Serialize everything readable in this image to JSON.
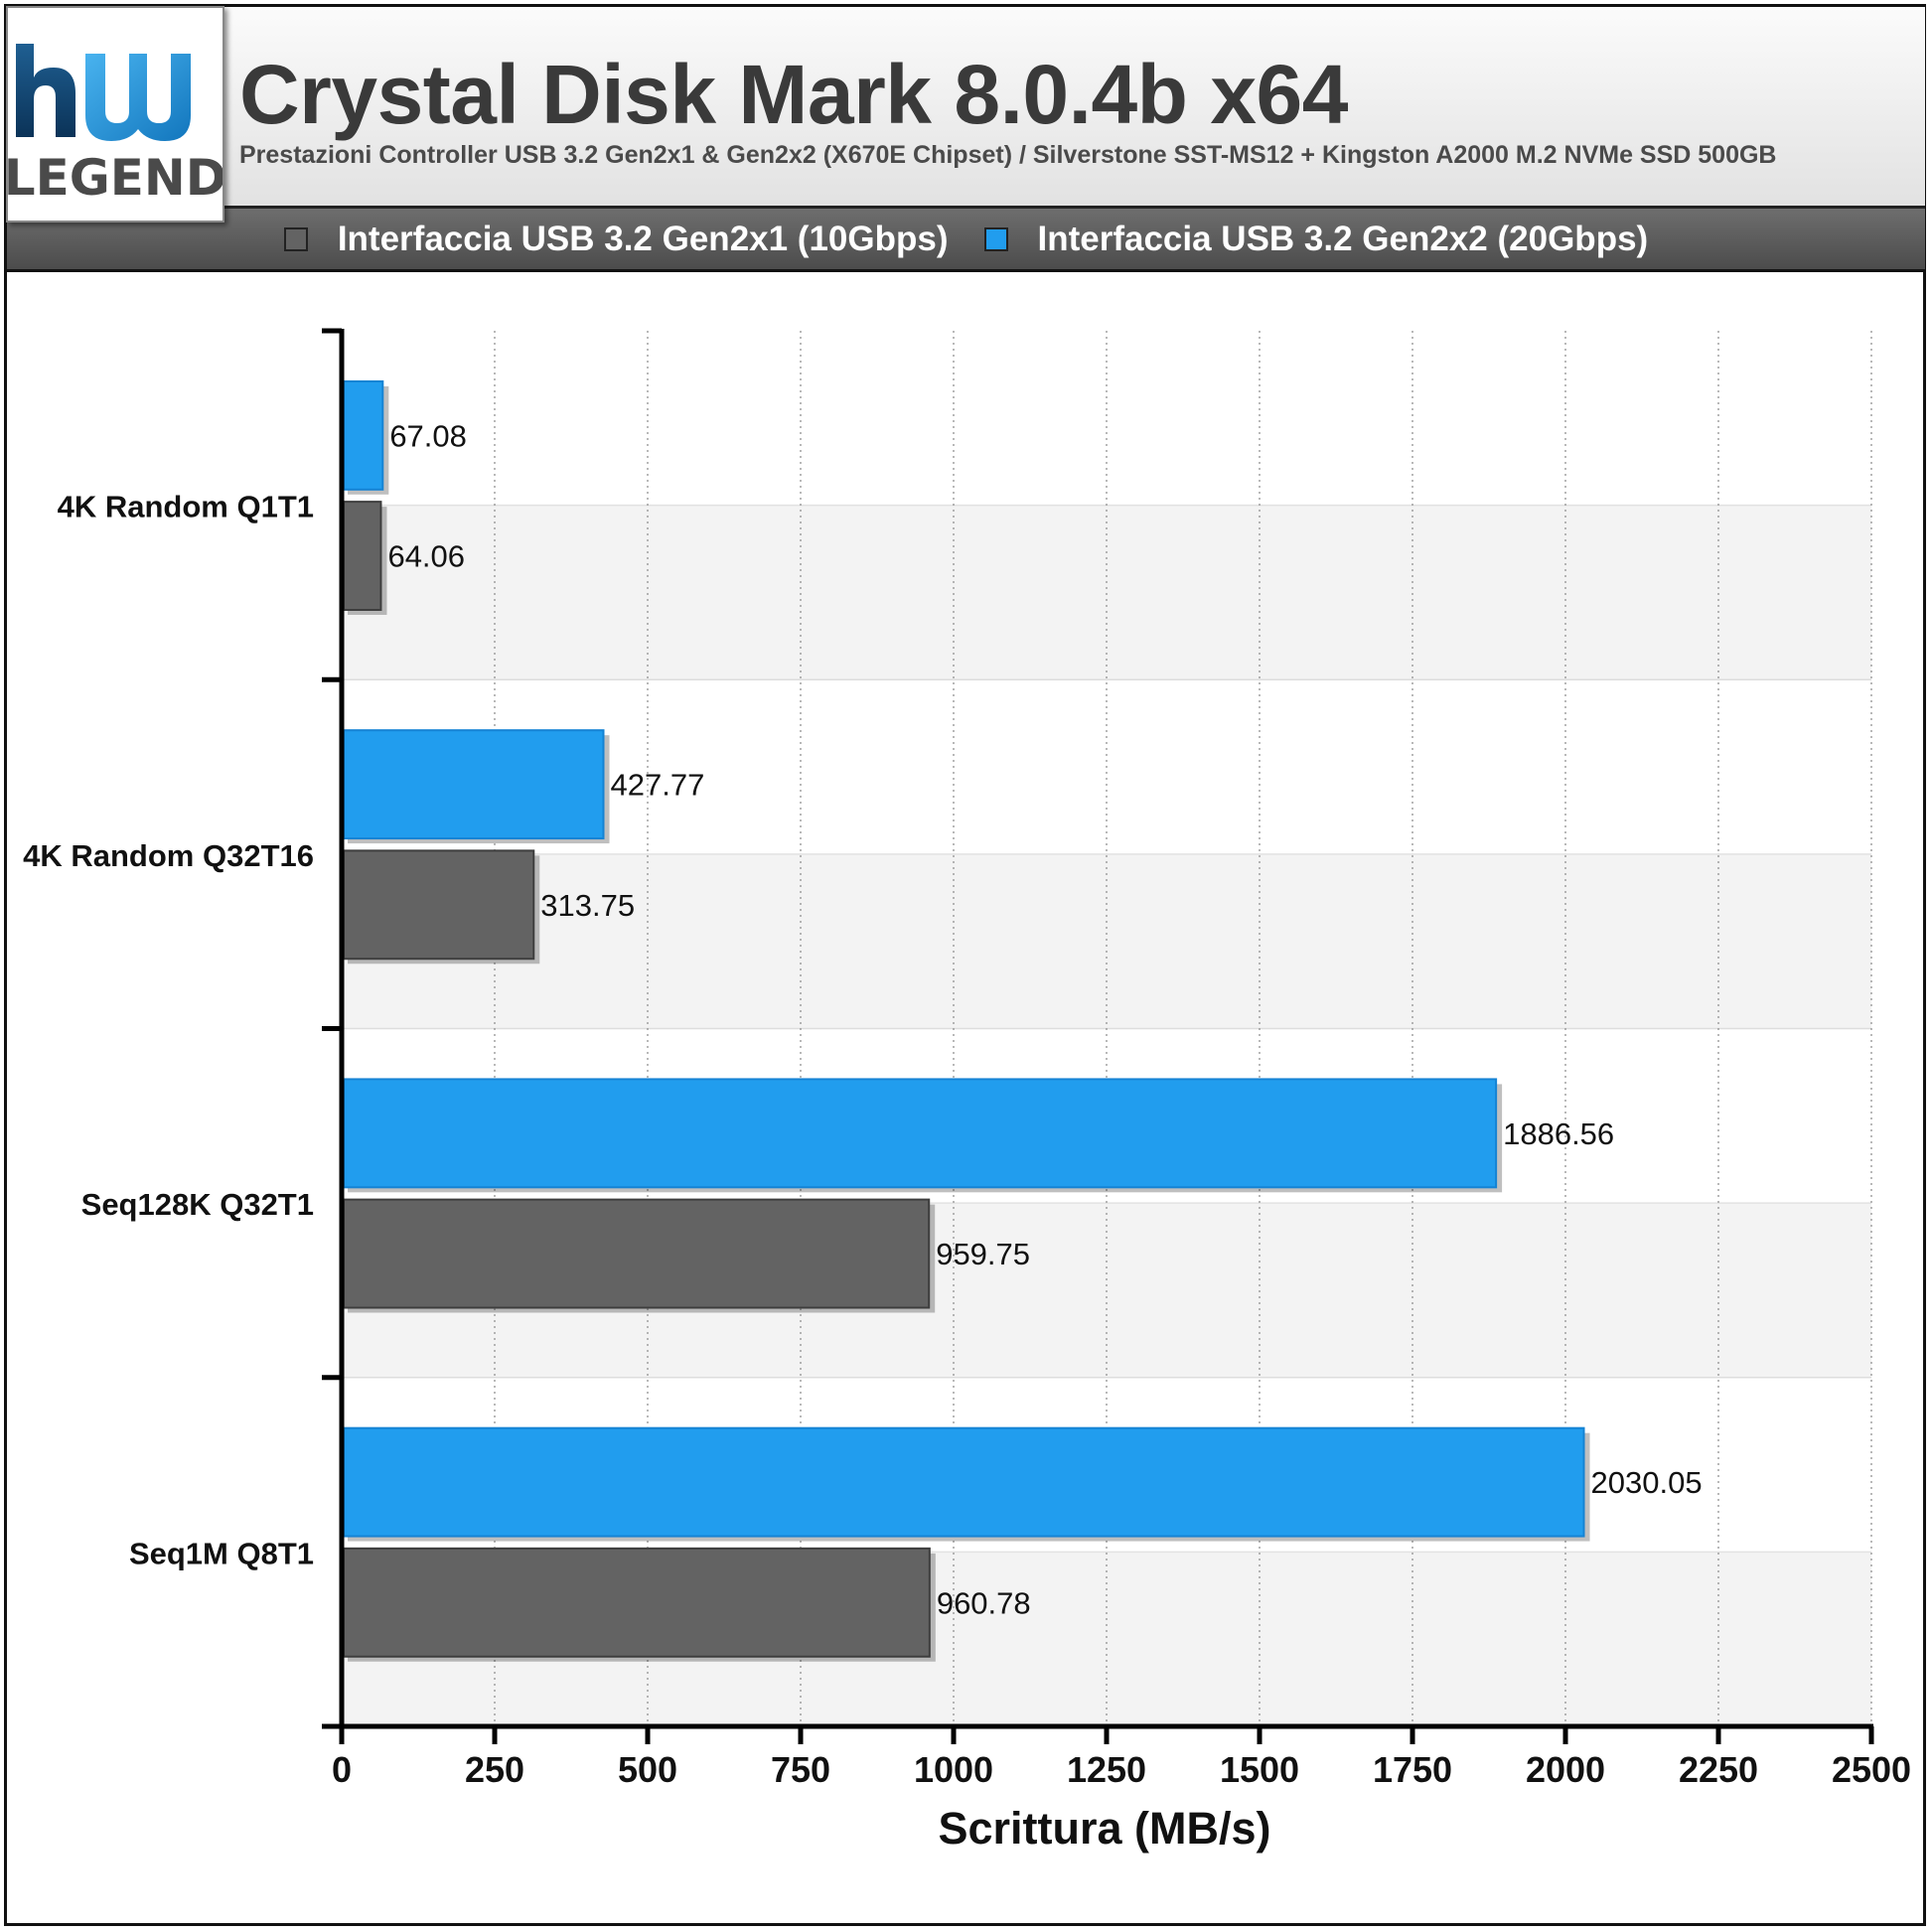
{
  "header": {
    "title": "Crystal Disk Mark 8.0.4b x64",
    "subtitle": "Prestazioni Controller USB 3.2 Gen2x1 & Gen2x2 (X670E Chipset) / Silverstone SST-MS12 + Kingston A2000 M.2 NVMe SSD 500GB"
  },
  "logo": {
    "text": "LEGEND",
    "mark": "hw"
  },
  "colors": {
    "gen2x1": "#636363",
    "gen2x2": "#219dee"
  },
  "chart_data": {
    "type": "bar",
    "orientation": "horizontal",
    "title": "Crystal Disk Mark 8.0.4b x64",
    "subtitle": "Prestazioni Controller USB 3.2 Gen2x1 & Gen2x2 (X670E Chipset) / Silverstone SST-MS12 + Kingston A2000 M.2 NVMe SSD 500GB",
    "xlabel": "Scrittura (MB/s)",
    "ylabel": "",
    "xlim": [
      0,
      2500
    ],
    "xticks": [
      0,
      250,
      500,
      750,
      1000,
      1250,
      1500,
      1750,
      2000,
      2250,
      2500
    ],
    "grid": "vertical dotted",
    "legend_position": "top",
    "categories": [
      "4K Random Q1T1",
      "4K Random Q32T16",
      "Seq128K Q32T1",
      "Seq1M Q8T1"
    ],
    "series": [
      {
        "name": "Interfaccia USB 3.2 Gen2x1 (10Gbps)",
        "color": "#636363",
        "values": [
          64.06,
          313.75,
          959.75,
          960.78
        ],
        "labels": [
          "64.06",
          "313.75",
          "959.75",
          "960.78"
        ]
      },
      {
        "name": "Interfaccia USB 3.2 Gen2x2 (20Gbps)",
        "color": "#219dee",
        "values": [
          67.08,
          427.77,
          1886.56,
          2030.05
        ],
        "labels": [
          "67.08",
          "427.77",
          "1886.56",
          "2030.05"
        ]
      }
    ]
  }
}
